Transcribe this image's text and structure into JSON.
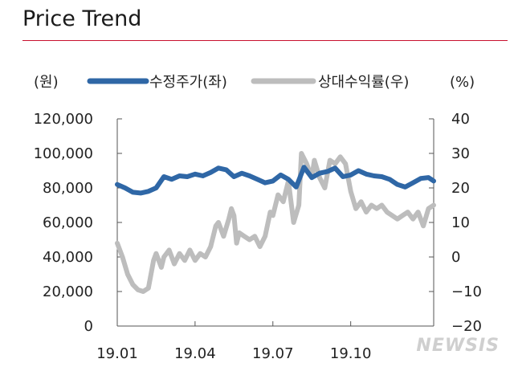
{
  "title": "Price Trend",
  "watermark": "NEWSIS",
  "chart_data": {
    "type": "line",
    "left_unit": "(원)",
    "right_unit": "(%)",
    "yleft": {
      "lim": [
        0,
        120000
      ],
      "ticks": [
        "0",
        "20,000",
        "40,000",
        "60,000",
        "80,000",
        "100,000",
        "120,000"
      ],
      "values": [
        0,
        20000,
        40000,
        60000,
        80000,
        100000,
        120000
      ]
    },
    "yright": {
      "lim": [
        -20,
        40
      ],
      "ticks": [
        "−20",
        "−10",
        "0",
        "10",
        "20",
        "30",
        "40"
      ],
      "values": [
        -20,
        -10,
        0,
        10,
        20,
        30,
        40
      ]
    },
    "x_ticks": [
      "19.01",
      "19.04",
      "19.07",
      "19.10"
    ],
    "x_tick_positions": [
      0,
      3,
      6,
      9
    ],
    "x_range": [
      0,
      12.2
    ],
    "series": [
      {
        "name": "수정주가(좌)",
        "axis": "left",
        "color": "#2f67a6",
        "x": [
          0,
          0.3,
          0.6,
          0.9,
          1.2,
          1.5,
          1.8,
          2.1,
          2.4,
          2.7,
          3.0,
          3.3,
          3.6,
          3.9,
          4.2,
          4.5,
          4.8,
          5.1,
          5.4,
          5.7,
          6.0,
          6.3,
          6.6,
          6.9,
          7.2,
          7.5,
          7.8,
          8.1,
          8.4,
          8.7,
          9.0,
          9.3,
          9.6,
          9.9,
          10.2,
          10.5,
          10.8,
          11.1,
          11.4,
          11.7,
          12.0,
          12.2
        ],
        "y": [
          82000,
          80000,
          77500,
          77000,
          78000,
          80000,
          86500,
          85000,
          87000,
          86500,
          88000,
          87000,
          89000,
          91500,
          90500,
          86500,
          88500,
          87000,
          85000,
          83000,
          84000,
          87500,
          85000,
          80500,
          92000,
          86000,
          88500,
          89500,
          91500,
          86500,
          87500,
          90000,
          88000,
          87000,
          86500,
          85000,
          82000,
          80500,
          83000,
          85500,
          86000,
          84000
        ]
      },
      {
        "name": "상대수익률(우)",
        "axis": "right",
        "color": "#bdbdbd",
        "x": [
          0,
          0.2,
          0.4,
          0.6,
          0.8,
          1.0,
          1.2,
          1.4,
          1.5,
          1.7,
          1.8,
          2.0,
          2.2,
          2.4,
          2.6,
          2.8,
          3.0,
          3.2,
          3.4,
          3.6,
          3.8,
          3.9,
          4.1,
          4.3,
          4.4,
          4.5,
          4.6,
          4.7,
          4.9,
          5.1,
          5.3,
          5.5,
          5.7,
          5.9,
          6.0,
          6.2,
          6.4,
          6.6,
          6.8,
          7.0,
          7.1,
          7.3,
          7.5,
          7.6,
          7.8,
          8.0,
          8.2,
          8.4,
          8.6,
          8.8,
          9.0,
          9.2,
          9.4,
          9.6,
          9.8,
          10.0,
          10.2,
          10.4,
          10.6,
          10.8,
          11.0,
          11.2,
          11.4,
          11.6,
          11.8,
          12.0,
          12.2
        ],
        "y": [
          4,
          0,
          -5,
          -8,
          -9.5,
          -10,
          -9,
          -1,
          1,
          -3,
          0,
          2,
          -2,
          1,
          -1,
          2,
          -1,
          1,
          0,
          3,
          9,
          10,
          6,
          11,
          14,
          12,
          4,
          7,
          6,
          5,
          6,
          3,
          6,
          13,
          12,
          18,
          16,
          22,
          10,
          15,
          30,
          27,
          23,
          28,
          23,
          20,
          28,
          27,
          29,
          27,
          19,
          14,
          16,
          13,
          15,
          14,
          15,
          13,
          12,
          11,
          12,
          13,
          11,
          13,
          9,
          14,
          15
        ]
      }
    ],
    "legend_position": "top",
    "grid": false
  }
}
